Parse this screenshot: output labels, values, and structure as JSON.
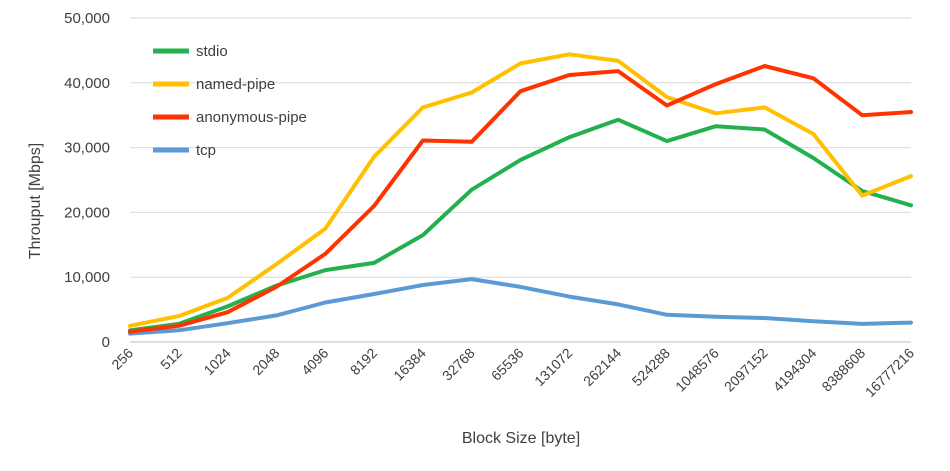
{
  "chart_data": {
    "type": "line",
    "title": "",
    "xlabel": "Block Size [byte]",
    "ylabel": "Throuput [Mbps]",
    "ylim": [
      0,
      50000
    ],
    "yticks": [
      "0",
      "10,000",
      "20,000",
      "30,000",
      "40,000",
      "50,000"
    ],
    "ytick_values": [
      0,
      10000,
      20000,
      30000,
      40000,
      50000
    ],
    "categories": [
      "256",
      "512",
      "1024",
      "2048",
      "4096",
      "8192",
      "16384",
      "32768",
      "65536",
      "131072",
      "262144",
      "524288",
      "1048576",
      "2097152",
      "4194304",
      "8388608",
      "16777216"
    ],
    "grid": "horizontal",
    "legend_position": "top-left",
    "series": [
      {
        "name": "stdio",
        "color": "#22b14c",
        "values": [
          1800,
          2800,
          5500,
          8700,
          11100,
          12200,
          16500,
          23500,
          28100,
          31600,
          34300,
          31000,
          33300,
          32800,
          28400,
          23300,
          21100
        ]
      },
      {
        "name": "named-pipe",
        "color": "#ffc000",
        "values": [
          2500,
          4000,
          6800,
          12000,
          17500,
          28600,
          36200,
          38500,
          43000,
          44400,
          43400,
          37800,
          35300,
          36200,
          32100,
          22600,
          25600
        ]
      },
      {
        "name": "anonymous-pipe",
        "color": "#ff3300",
        "values": [
          1600,
          2500,
          4600,
          8500,
          13600,
          21000,
          31100,
          30900,
          38700,
          41200,
          41800,
          36500,
          39800,
          42600,
          40700,
          35000,
          35500
        ]
      },
      {
        "name": "tcp",
        "color": "#5b9bd5",
        "values": [
          1300,
          1800,
          2900,
          4100,
          6100,
          7400,
          8800,
          9700,
          8500,
          7000,
          5800,
          4200,
          3900,
          3700,
          3200,
          2800,
          3000
        ]
      }
    ]
  }
}
